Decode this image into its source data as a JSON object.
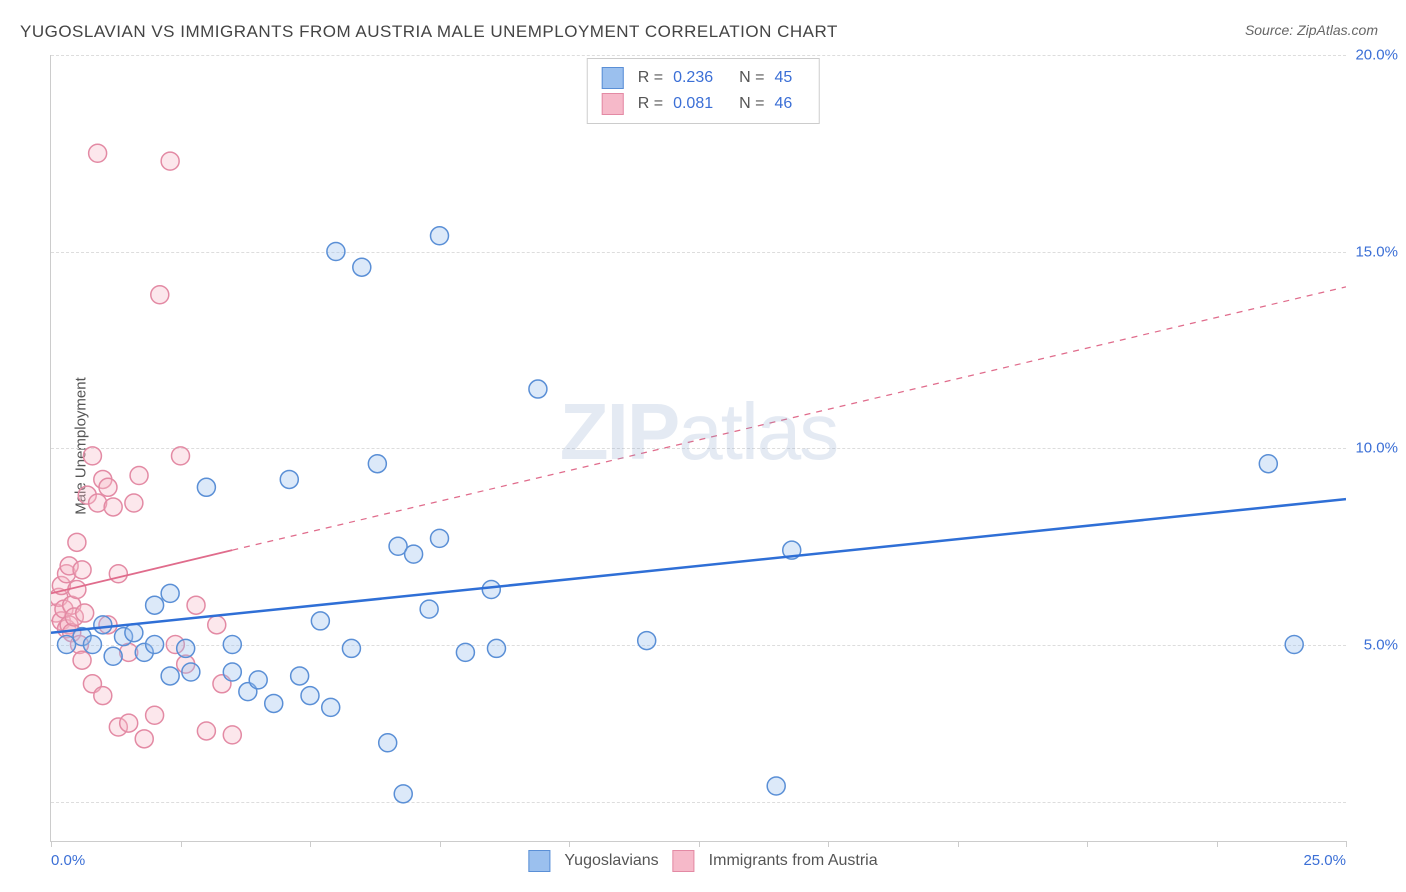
{
  "title": "YUGOSLAVIAN VS IMMIGRANTS FROM AUSTRIA MALE UNEMPLOYMENT CORRELATION CHART",
  "source": "Source: ZipAtlas.com",
  "y_axis_label": "Male Unemployment",
  "watermark_bold": "ZIP",
  "watermark_rest": "atlas",
  "chart": {
    "type": "scatter",
    "xlim": [
      0,
      25
    ],
    "ylim": [
      0,
      20
    ],
    "x_ticks": [
      0,
      2.5,
      5,
      7.5,
      10,
      12.5,
      15,
      17.5,
      20,
      22.5,
      25
    ],
    "x_tick_labels_shown": {
      "0": "0.0%",
      "25": "25.0%"
    },
    "y_ticks": [
      5,
      10,
      15,
      20
    ],
    "y_tick_labels": {
      "5": "5.0%",
      "10": "10.0%",
      "15": "15.0%",
      "20": "20.0%"
    },
    "grid_lines_h": [
      1,
      5,
      10,
      15,
      20
    ],
    "background_color": "#ffffff",
    "grid_color": "#dddddd",
    "axis_color": "#cccccc",
    "tick_label_color": "#3b6fd6",
    "marker_radius": 9,
    "marker_stroke_width": 1.5,
    "marker_fill_opacity": 0.35,
    "series": [
      {
        "name": "Yugoslavians",
        "color_fill": "#9bc0ee",
        "color_stroke": "#5a8fd6",
        "r_label": "R =",
        "r_value": "0.236",
        "n_label": "N =",
        "n_value": "45",
        "points": [
          [
            0.3,
            5.0
          ],
          [
            0.6,
            5.2
          ],
          [
            0.8,
            5.0
          ],
          [
            1.0,
            5.5
          ],
          [
            1.2,
            4.7
          ],
          [
            1.4,
            5.2
          ],
          [
            1.6,
            5.3
          ],
          [
            1.8,
            4.8
          ],
          [
            2.0,
            5.0
          ],
          [
            2.0,
            6.0
          ],
          [
            2.3,
            4.2
          ],
          [
            2.3,
            6.3
          ],
          [
            2.6,
            4.9
          ],
          [
            2.7,
            4.3
          ],
          [
            3.0,
            9.0
          ],
          [
            3.5,
            4.3
          ],
          [
            3.5,
            5.0
          ],
          [
            3.8,
            3.8
          ],
          [
            4.0,
            4.1
          ],
          [
            4.3,
            3.5
          ],
          [
            4.6,
            9.2
          ],
          [
            4.8,
            4.2
          ],
          [
            5.0,
            3.7
          ],
          [
            5.2,
            5.6
          ],
          [
            5.4,
            3.4
          ],
          [
            5.5,
            15.0
          ],
          [
            5.8,
            4.9
          ],
          [
            6.0,
            14.6
          ],
          [
            6.3,
            9.6
          ],
          [
            6.5,
            2.5
          ],
          [
            6.7,
            7.5
          ],
          [
            6.8,
            1.2
          ],
          [
            7.0,
            7.3
          ],
          [
            7.3,
            5.9
          ],
          [
            7.5,
            15.4
          ],
          [
            7.5,
            7.7
          ],
          [
            8.0,
            4.8
          ],
          [
            8.5,
            6.4
          ],
          [
            8.6,
            4.9
          ],
          [
            9.4,
            11.5
          ],
          [
            11.5,
            5.1
          ],
          [
            14.3,
            7.4
          ],
          [
            14.0,
            1.4
          ],
          [
            23.5,
            9.6
          ],
          [
            24.0,
            5.0
          ]
        ],
        "trend": {
          "solid_from": [
            0,
            5.3
          ],
          "solid_to": [
            25,
            8.7
          ],
          "color": "#2f6fd6",
          "width": 2.5
        }
      },
      {
        "name": "Immigrants from Austria",
        "color_fill": "#f6b9c9",
        "color_stroke": "#e38aa4",
        "r_label": "R =",
        "r_value": "0.081",
        "n_label": "N =",
        "n_value": "46",
        "points": [
          [
            0.1,
            5.8
          ],
          [
            0.15,
            6.2
          ],
          [
            0.2,
            5.6
          ],
          [
            0.2,
            6.5
          ],
          [
            0.25,
            5.9
          ],
          [
            0.3,
            5.4
          ],
          [
            0.3,
            6.8
          ],
          [
            0.35,
            5.5
          ],
          [
            0.35,
            7.0
          ],
          [
            0.4,
            6.0
          ],
          [
            0.4,
            5.3
          ],
          [
            0.45,
            5.7
          ],
          [
            0.5,
            6.4
          ],
          [
            0.5,
            7.6
          ],
          [
            0.55,
            5.0
          ],
          [
            0.6,
            4.6
          ],
          [
            0.6,
            6.9
          ],
          [
            0.65,
            5.8
          ],
          [
            0.7,
            8.8
          ],
          [
            0.8,
            9.8
          ],
          [
            0.8,
            4.0
          ],
          [
            0.9,
            17.5
          ],
          [
            0.9,
            8.6
          ],
          [
            1.0,
            3.7
          ],
          [
            1.0,
            9.2
          ],
          [
            1.1,
            5.5
          ],
          [
            1.1,
            9.0
          ],
          [
            1.2,
            8.5
          ],
          [
            1.3,
            2.9
          ],
          [
            1.3,
            6.8
          ],
          [
            1.5,
            3.0
          ],
          [
            1.5,
            4.8
          ],
          [
            1.6,
            8.6
          ],
          [
            1.7,
            9.3
          ],
          [
            1.8,
            2.6
          ],
          [
            2.0,
            3.2
          ],
          [
            2.1,
            13.9
          ],
          [
            2.3,
            17.3
          ],
          [
            2.4,
            5.0
          ],
          [
            2.5,
            9.8
          ],
          [
            2.6,
            4.5
          ],
          [
            2.8,
            6.0
          ],
          [
            3.0,
            2.8
          ],
          [
            3.2,
            5.5
          ],
          [
            3.3,
            4.0
          ],
          [
            3.5,
            2.7
          ]
        ],
        "trend": {
          "solid_from": [
            0,
            6.3
          ],
          "solid_to": [
            3.5,
            7.4
          ],
          "dashed_to": [
            25,
            14.1
          ],
          "color": "#e06c8c",
          "width": 1.8
        }
      }
    ]
  },
  "legend_bottom": {
    "series1": "Yugoslavians",
    "series2": "Immigrants from Austria"
  }
}
